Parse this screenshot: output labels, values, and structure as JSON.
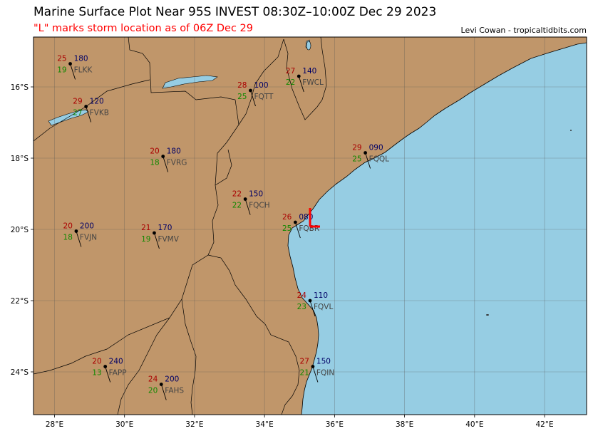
{
  "header": {
    "title": "Marine Surface Plot Near 95S INVEST 08:30Z–10:00Z Dec 29 2023",
    "subtitle": "\"L\" marks storm location as of 06Z Dec 29",
    "credit": "Levi Cowan - tropicaltidbits.com"
  },
  "colors": {
    "land": "#c0966a",
    "water": "#96cde3",
    "storm_marker": "#ff0000",
    "temp": "#aa0000",
    "dewpoint": "#118800",
    "pressure": "#000066"
  },
  "map": {
    "lon_range": [
      27.4,
      43.2
    ],
    "lat_range": [
      -25.2,
      -14.6
    ],
    "x_ticks": [
      "28°E",
      "30°E",
      "32°E",
      "34°E",
      "36°E",
      "38°E",
      "40°E",
      "42°E"
    ],
    "y_ticks": [
      "16°S",
      "18°S",
      "20°S",
      "22°S",
      "24°S"
    ],
    "grid": true
  },
  "storm": {
    "label": "L",
    "lon": 35.3,
    "lat": -19.8
  },
  "stations": [
    {
      "id": "FLKK",
      "temp": "25",
      "dew": "19",
      "pres": "180",
      "lon": 28.45,
      "lat": -15.35
    },
    {
      "id": "FWCL",
      "temp": "27",
      "dew": "22",
      "pres": "140",
      "lon": 34.98,
      "lat": -15.7
    },
    {
      "id": "FQTT",
      "temp": "28",
      "dew": "25",
      "pres": "100",
      "lon": 33.6,
      "lat": -16.1
    },
    {
      "id": "FVKB",
      "temp": "29",
      "dew": "27",
      "pres": "120",
      "lon": 28.9,
      "lat": -16.55
    },
    {
      "id": "FQQL",
      "temp": "29",
      "dew": "25",
      "pres": "090",
      "lon": 36.88,
      "lat": -17.85
    },
    {
      "id": "FVRG",
      "temp": "20",
      "dew": "18",
      "pres": "180",
      "lon": 31.1,
      "lat": -17.95
    },
    {
      "id": "FQCH",
      "temp": "22",
      "dew": "22",
      "pres": "150",
      "lon": 33.45,
      "lat": -19.15
    },
    {
      "id": "FQBR",
      "temp": "26",
      "dew": "25",
      "pres": "080",
      "lon": 34.88,
      "lat": -19.8
    },
    {
      "id": "FVJN",
      "temp": "20",
      "dew": "18",
      "pres": "200",
      "lon": 28.62,
      "lat": -20.05
    },
    {
      "id": "FVMV",
      "temp": "21",
      "dew": "19",
      "pres": "170",
      "lon": 30.85,
      "lat": -20.1
    },
    {
      "id": "FQVL",
      "temp": "24",
      "dew": "23",
      "pres": "110",
      "lon": 35.3,
      "lat": -22.0
    },
    {
      "id": "FQIN",
      "temp": "27",
      "dew": "21",
      "pres": "150",
      "lon": 35.38,
      "lat": -23.85
    },
    {
      "id": "FAPP",
      "temp": "20",
      "dew": "13",
      "pres": "240",
      "lon": 29.45,
      "lat": -23.85
    },
    {
      "id": "FAHS",
      "temp": "24",
      "dew": "20",
      "pres": "200",
      "lon": 31.05,
      "lat": -24.35
    }
  ]
}
